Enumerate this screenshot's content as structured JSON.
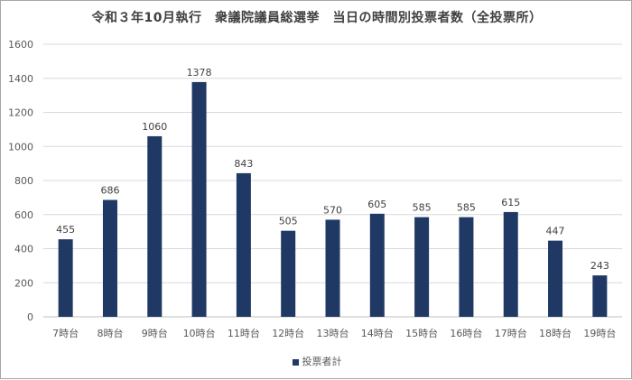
{
  "chart_data": {
    "type": "bar",
    "title": "令和３年10月執行　衆議院議員総選挙　当日の時間別投票者数（全投票所）",
    "categories": [
      "7時台",
      "8時台",
      "9時台",
      "10時台",
      "11時台",
      "12時台",
      "13時台",
      "14時台",
      "15時台",
      "16時台",
      "17時台",
      "18時台",
      "19時台"
    ],
    "series": [
      {
        "name": "投票者計",
        "values": [
          455,
          686,
          1060,
          1378,
          843,
          505,
          570,
          605,
          585,
          585,
          615,
          447,
          243
        ]
      }
    ],
    "ylim": [
      0,
      1600
    ],
    "yticks": [
      0,
      200,
      400,
      600,
      800,
      1000,
      1200,
      1400,
      1600
    ],
    "grid": true,
    "legend_position": "bottom",
    "bar_color": "#1f3864",
    "data_labels": true
  }
}
